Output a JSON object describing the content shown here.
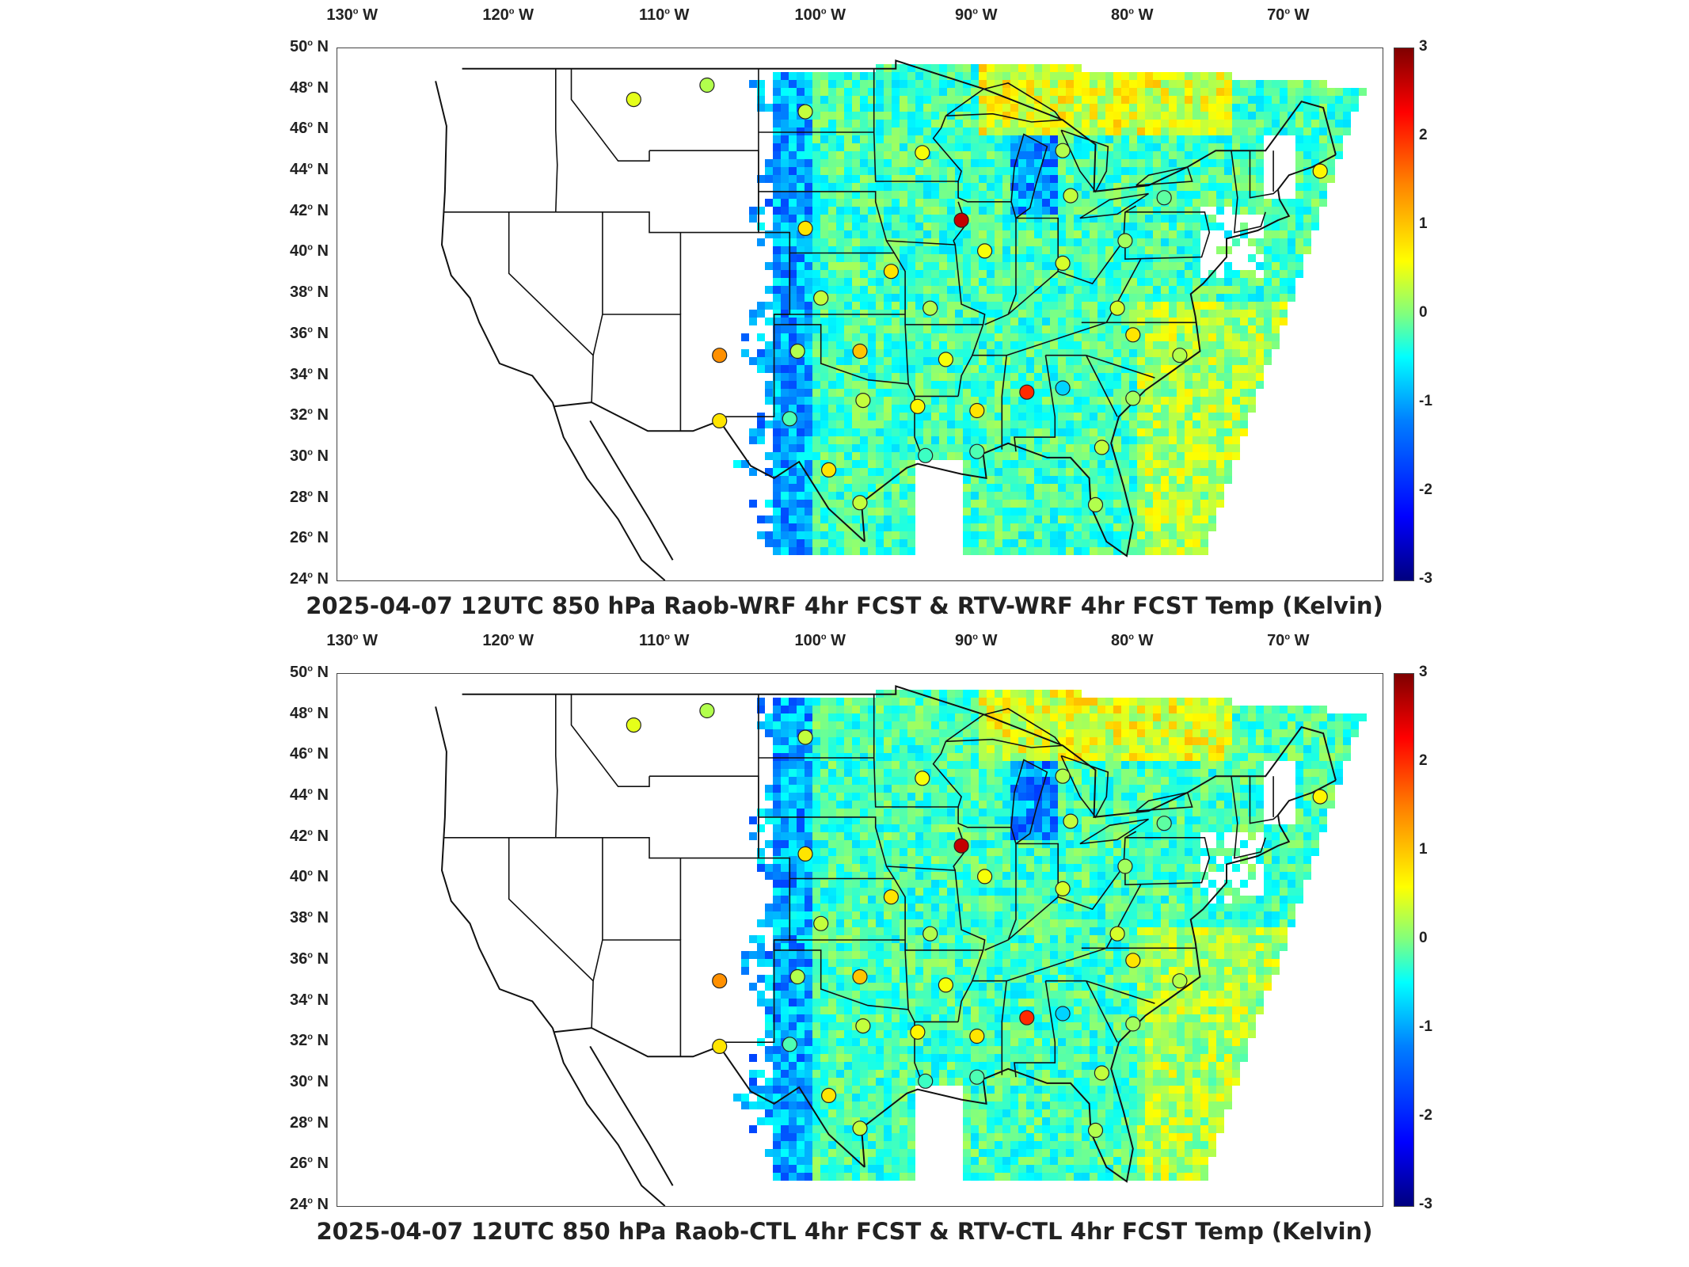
{
  "panels": [
    {
      "title": "2025-04-07 12UTC 850 hPa Raob-WRF 4hr FCST & RTV-WRF 4hr FCST Temp (Kelvin)"
    },
    {
      "title": "2025-04-07 12UTC 850 hPa Raob-CTL 4hr FCST & RTV-CTL 4hr FCST Temp (Kelvin)"
    }
  ],
  "lon_ticks": [
    "130",
    "120",
    "110",
    "100",
    "90",
    "80",
    "70"
  ],
  "lon_suffix": "W",
  "lat_ticks": [
    "50",
    "48",
    "46",
    "44",
    "42",
    "40",
    "38",
    "36",
    "34",
    "32",
    "30",
    "28",
    "26",
    "24"
  ],
  "lat_suffix": "N",
  "degree_symbol": "°",
  "colorbar": {
    "ticks": [
      "3",
      "2",
      "1",
      "0",
      "-1",
      "-2",
      "-3"
    ],
    "min": -3,
    "max": 3,
    "colormap": "jet"
  },
  "map_extent": {
    "lon": [
      -131,
      -64
    ],
    "lat": [
      24,
      50
    ]
  },
  "raob_stations": [
    {
      "lon": -112.0,
      "lat": 47.5,
      "value": 0.6
    },
    {
      "lon": -107.3,
      "lat": 48.2,
      "value": 0.3
    },
    {
      "lon": -101.0,
      "lat": 46.9,
      "value": 0.4
    },
    {
      "lon": -93.5,
      "lat": 44.9,
      "value": 0.7
    },
    {
      "lon": -84.5,
      "lat": 45.0,
      "value": 0.3
    },
    {
      "lon": -68.0,
      "lat": 44.0,
      "value": 0.8
    },
    {
      "lon": -91.0,
      "lat": 41.6,
      "value": 2.6
    },
    {
      "lon": -84.0,
      "lat": 42.8,
      "value": 0.4
    },
    {
      "lon": -78.0,
      "lat": 42.7,
      "value": -0.2
    },
    {
      "lon": -101.0,
      "lat": 41.2,
      "value": 0.9
    },
    {
      "lon": -89.5,
      "lat": 40.1,
      "value": 0.7
    },
    {
      "lon": -84.5,
      "lat": 39.5,
      "value": 0.5
    },
    {
      "lon": -95.5,
      "lat": 39.1,
      "value": 0.9
    },
    {
      "lon": -80.5,
      "lat": 40.6,
      "value": 0.2
    },
    {
      "lon": -100.0,
      "lat": 37.8,
      "value": 0.4
    },
    {
      "lon": -93.0,
      "lat": 37.3,
      "value": 0.3
    },
    {
      "lon": -81.0,
      "lat": 37.3,
      "value": 0.5
    },
    {
      "lon": -106.5,
      "lat": 35.0,
      "value": 1.4
    },
    {
      "lon": -101.5,
      "lat": 35.2,
      "value": 0.3
    },
    {
      "lon": -97.5,
      "lat": 35.2,
      "value": 1.1
    },
    {
      "lon": -92.0,
      "lat": 34.8,
      "value": 0.7
    },
    {
      "lon": -80.0,
      "lat": 36.0,
      "value": 0.9
    },
    {
      "lon": -86.8,
      "lat": 33.2,
      "value": 2.0
    },
    {
      "lon": -84.5,
      "lat": 33.4,
      "value": -1.0
    },
    {
      "lon": -77.0,
      "lat": 35.0,
      "value": 0.3
    },
    {
      "lon": -97.3,
      "lat": 32.8,
      "value": 0.4
    },
    {
      "lon": -93.8,
      "lat": 32.5,
      "value": 0.8
    },
    {
      "lon": -90.0,
      "lat": 32.3,
      "value": 0.9
    },
    {
      "lon": -106.5,
      "lat": 31.8,
      "value": 0.9
    },
    {
      "lon": -102.0,
      "lat": 31.9,
      "value": -0.3
    },
    {
      "lon": -80.0,
      "lat": 32.9,
      "value": 0.2
    },
    {
      "lon": -99.5,
      "lat": 29.4,
      "value": 0.9
    },
    {
      "lon": -93.3,
      "lat": 30.1,
      "value": -0.4
    },
    {
      "lon": -90.0,
      "lat": 30.3,
      "value": -0.3
    },
    {
      "lon": -82.0,
      "lat": 30.5,
      "value": 0.4
    },
    {
      "lon": -97.5,
      "lat": 27.8,
      "value": 0.4
    },
    {
      "lon": -82.4,
      "lat": 27.7,
      "value": 0.3
    }
  ]
}
